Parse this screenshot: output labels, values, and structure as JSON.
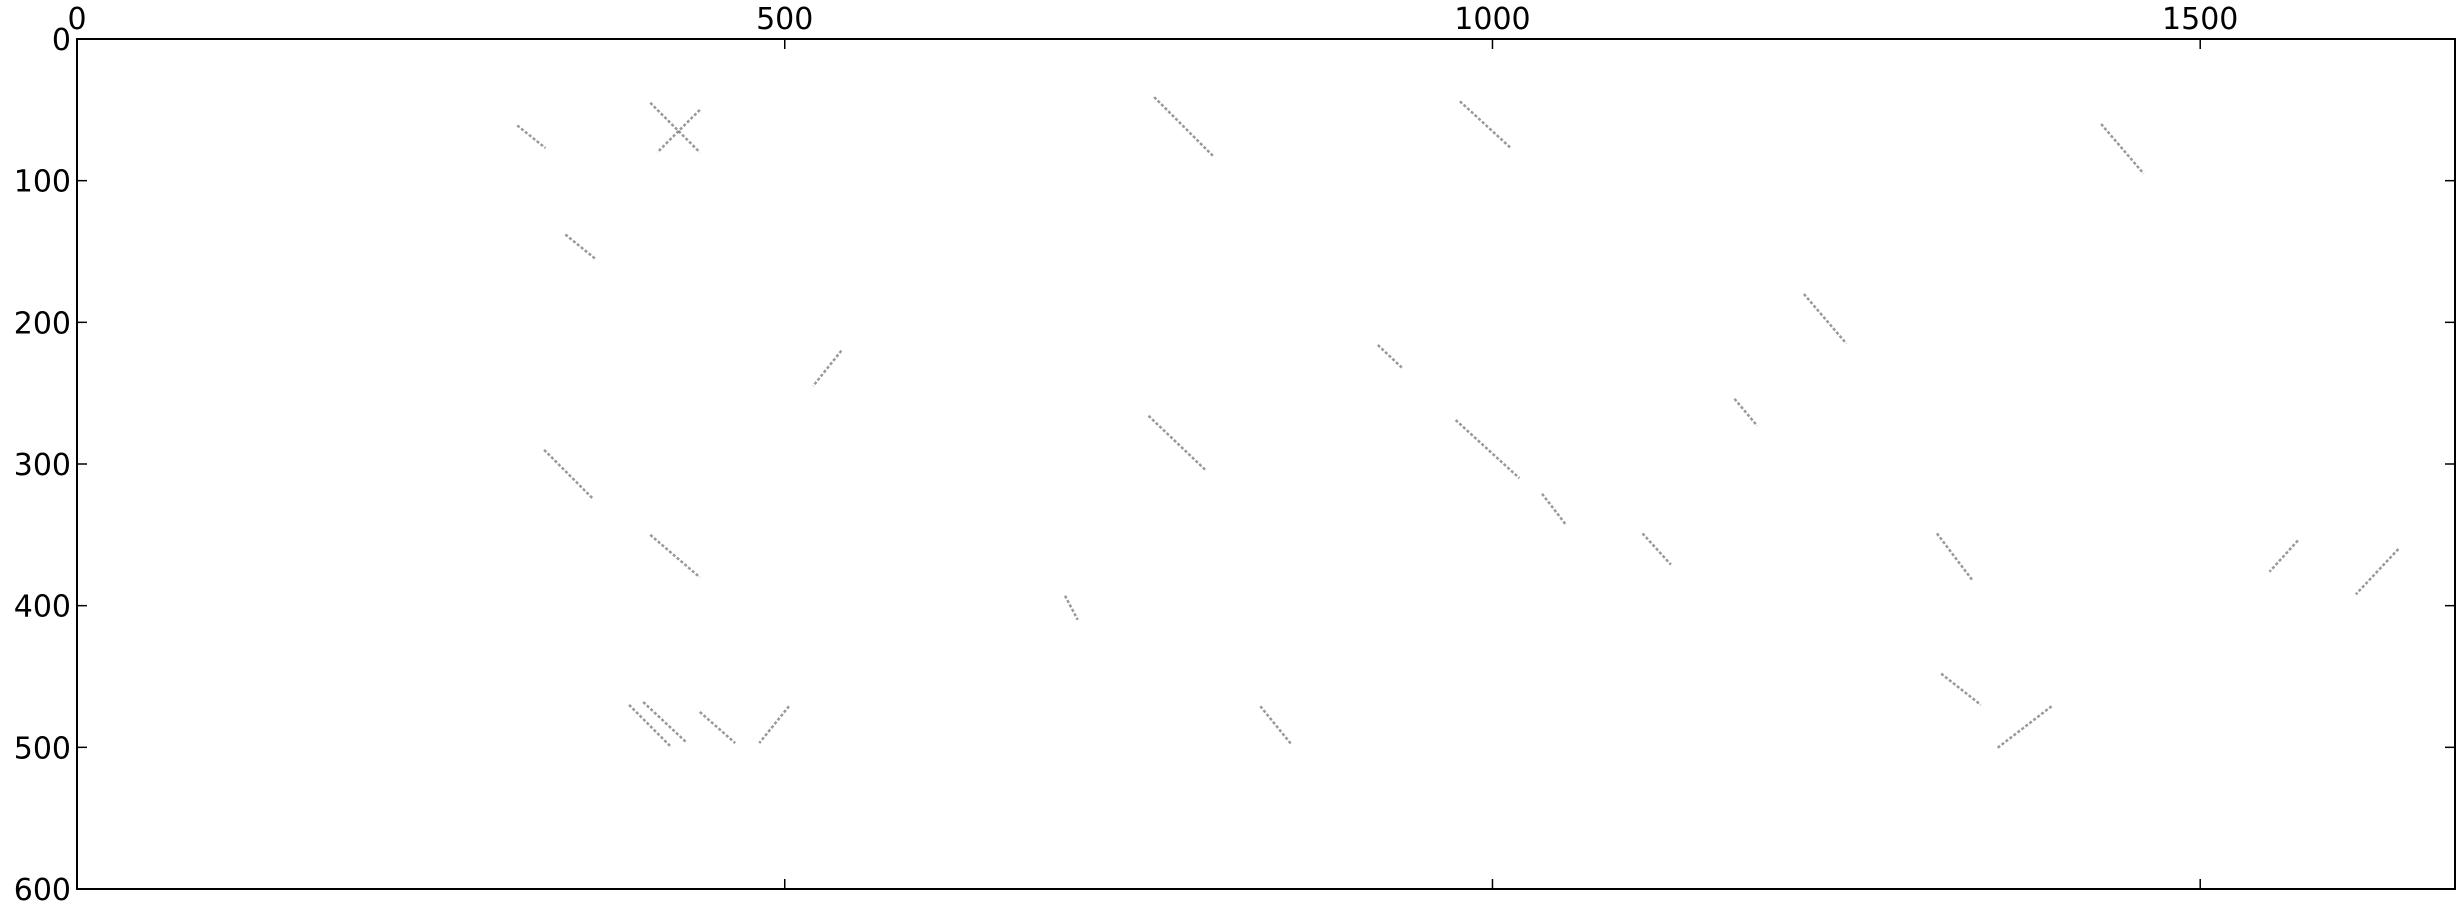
{
  "chart_data": {
    "type": "image",
    "xlim": [
      0,
      1680
    ],
    "ylim": [
      600,
      0
    ],
    "xticks": [
      0,
      500,
      1000,
      1500
    ],
    "yticks": [
      0,
      100,
      200,
      300,
      400,
      500,
      600
    ],
    "color": "#555555",
    "segments": [
      {
        "x": [
          761,
          803
        ],
        "y": [
          41,
          83
        ]
      },
      {
        "x": [
          977,
          1013
        ],
        "y": [
          44,
          77
        ]
      },
      {
        "x": [
          757,
          797
        ],
        "y": [
          266,
          304
        ]
      },
      {
        "x": [
          974,
          1019
        ],
        "y": [
          269,
          310
        ]
      },
      {
        "x": [
          311,
          331
        ],
        "y": [
          61,
          77
        ]
      },
      {
        "x": [
          345,
          366
        ],
        "y": [
          138,
          155
        ]
      },
      {
        "x": [
          1035,
          1052
        ],
        "y": [
          321,
          343
        ]
      },
      {
        "x": [
          1106,
          1126
        ],
        "y": [
          349,
          371
        ]
      },
      {
        "x": [
          1314,
          1339
        ],
        "y": [
          349,
          382
        ]
      },
      {
        "x": [
          1569,
          1549
        ],
        "y": [
          354,
          376
        ]
      },
      {
        "x": [
          1171,
          1187
        ],
        "y": [
          254,
          273
        ]
      },
      {
        "x": [
          1317,
          1345
        ],
        "y": [
          448,
          470
        ]
      },
      {
        "x": [
          390,
          420
        ],
        "y": [
          470,
          500
        ]
      },
      {
        "x": [
          400,
          430
        ],
        "y": [
          468,
          496
        ]
      },
      {
        "x": [
          440,
          465
        ],
        "y": [
          475,
          497
        ]
      },
      {
        "x": [
          836,
          858
        ],
        "y": [
          471,
          498
        ]
      },
      {
        "x": [
          1395,
          1356
        ],
        "y": [
          471,
          501
        ]
      },
      {
        "x": [
          503,
          482
        ],
        "y": [
          471,
          497
        ]
      },
      {
        "x": [
          698,
          707
        ],
        "y": [
          393,
          410
        ]
      },
      {
        "x": [
          919,
          936
        ],
        "y": [
          216,
          232
        ]
      },
      {
        "x": [
          405,
          440
        ],
        "y": [
          45,
          80
        ]
      },
      {
        "x": [
          440,
          410
        ],
        "y": [
          50,
          80
        ]
      },
      {
        "x": [
          330,
          365
        ],
        "y": [
          290,
          325
        ]
      },
      {
        "x": [
          405,
          440
        ],
        "y": [
          350,
          380
        ]
      },
      {
        "x": [
          1430,
          1460
        ],
        "y": [
          60,
          95
        ]
      },
      {
        "x": [
          1220,
          1250
        ],
        "y": [
          180,
          215
        ]
      },
      {
        "x": [
          1640,
          1610
        ],
        "y": [
          360,
          392
        ]
      },
      {
        "x": [
          540,
          520
        ],
        "y": [
          220,
          245
        ]
      }
    ]
  }
}
